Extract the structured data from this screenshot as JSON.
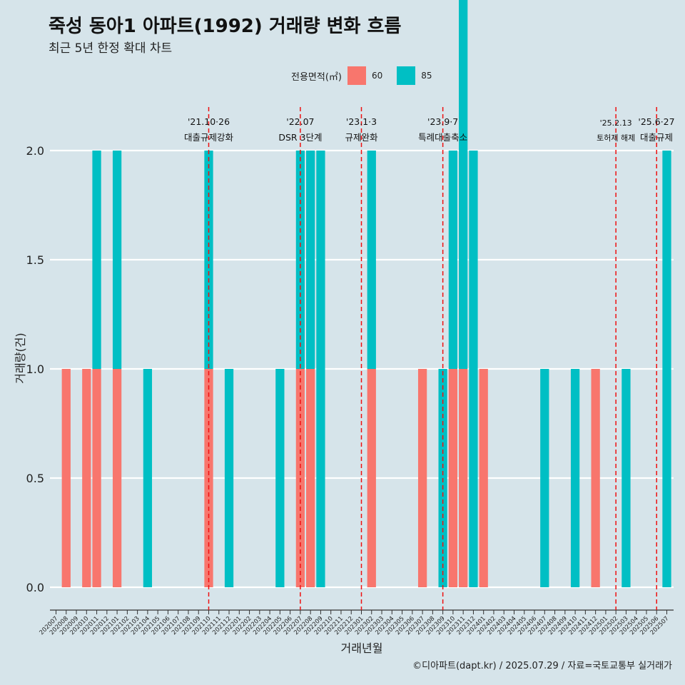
{
  "title": "죽성 동아1 아파트(1992) 거래량 변화 흐름",
  "subtitle": "최근 5년 한정 확대 차트",
  "caption": "©디아파트(dapt.kr) / 2025.07.29 / 자료=국토교통부 실거래가",
  "legend": {
    "title": "전용면적(㎡)",
    "items": [
      {
        "label": "60",
        "color": "#f8766d"
      },
      {
        "label": "85",
        "color": "#00bfc4"
      }
    ]
  },
  "chart_data": {
    "type": "bar",
    "xlabel": "거래년월",
    "ylabel": "거래량(건)",
    "ylim": [
      0,
      2
    ],
    "yticks": [
      "0.0",
      "0.5",
      "1.0",
      "1.5",
      "2.0"
    ],
    "categories": [
      "202007",
      "202008",
      "202009",
      "202010",
      "202011",
      "202012",
      "202101",
      "202102",
      "202103",
      "202104",
      "202105",
      "202106",
      "202107",
      "202108",
      "202109",
      "202110",
      "202111",
      "202112",
      "202201",
      "202202",
      "202203",
      "202204",
      "202205",
      "202206",
      "202207",
      "202208",
      "202209",
      "202210",
      "202211",
      "202212",
      "202301",
      "202302",
      "202303",
      "202304",
      "202305",
      "202306",
      "202307",
      "202308",
      "202309",
      "202310",
      "202311",
      "202312",
      "202401",
      "202402",
      "202403",
      "202404",
      "202405",
      "202406",
      "202407",
      "202408",
      "202409",
      "202410",
      "202411",
      "202412",
      "202501",
      "202502",
      "202503",
      "202504",
      "202505",
      "202506",
      "202507"
    ],
    "series": [
      {
        "name": "60",
        "color": "#f8766d",
        "values": [
          0,
          1,
          0,
          1,
          1,
          0,
          1,
          0,
          0,
          0,
          0,
          0,
          0,
          0,
          0,
          1,
          0,
          0,
          0,
          0,
          0,
          0,
          0,
          0,
          1,
          1,
          0,
          0,
          0,
          0,
          0,
          1,
          0,
          0,
          0,
          0,
          1,
          0,
          0,
          1,
          1,
          0,
          1,
          0,
          0,
          0,
          0,
          0,
          0,
          0,
          0,
          0,
          0,
          1,
          0,
          0,
          0,
          0,
          0,
          0,
          0
        ]
      },
      {
        "name": "85",
        "color": "#00bfc4",
        "values": [
          0,
          0,
          0,
          0,
          1,
          0,
          1,
          0,
          0,
          1,
          0,
          0,
          0,
          0,
          0,
          1,
          0,
          1,
          0,
          0,
          0,
          0,
          1,
          0,
          1,
          1,
          2,
          0,
          0,
          0,
          0,
          1,
          0,
          0,
          0,
          0,
          0,
          0,
          1,
          1,
          2,
          2,
          0,
          0,
          0,
          0,
          0,
          0,
          1,
          0,
          0,
          1,
          0,
          0,
          0,
          0,
          1,
          0,
          0,
          0,
          2
        ]
      }
    ],
    "annotations": [
      {
        "x": "202110",
        "label": "'21.10·26",
        "label2": "대출규제강화"
      },
      {
        "x": "202207",
        "label": "'22.07",
        "label2": "DSR 3단계"
      },
      {
        "x": "202301",
        "label": "'23.1·3",
        "label2": "규제완화"
      },
      {
        "x": "202309",
        "label": "'23.9·7",
        "label2": "특례대출축소"
      },
      {
        "x": "202502",
        "label": "'25.2.13",
        "label2": "토허제 해제"
      },
      {
        "x": "202506",
        "label": "'25.6·27",
        "label2": "대출규제"
      }
    ]
  }
}
